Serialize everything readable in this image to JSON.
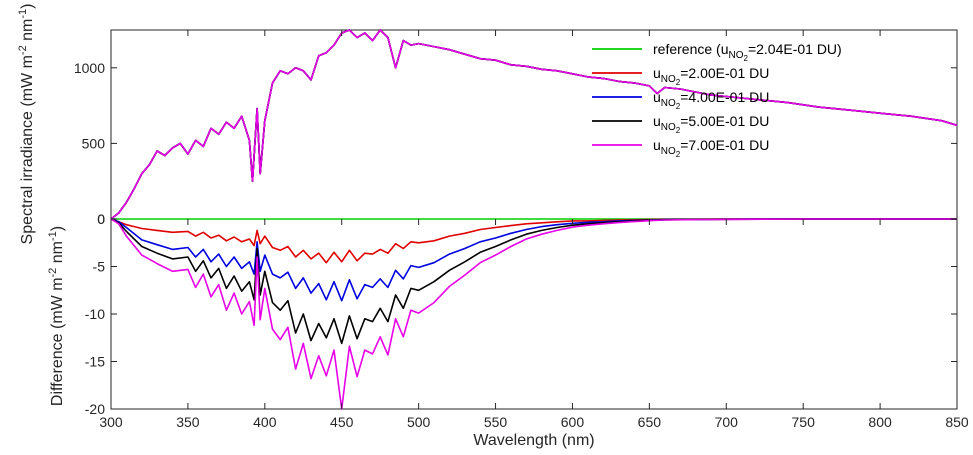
{
  "chart_data": [
    {
      "type": "line",
      "panel": "top",
      "xlabel": "Wavelength (nm)",
      "ylabel": "Spectral irradiance (mW m-2 nm-1)",
      "ylabel_parts": [
        "Spectral irradiance (mW m",
        "-2",
        " nm",
        "-1",
        ")"
      ],
      "xlim": [
        300,
        850
      ],
      "ylim": [
        0,
        1250
      ],
      "yticks": [
        "0",
        "500",
        "1000"
      ],
      "ytick_values": [
        0,
        500,
        1000
      ],
      "x": [
        300,
        305,
        310,
        315,
        320,
        325,
        330,
        335,
        340,
        345,
        350,
        355,
        360,
        365,
        370,
        375,
        380,
        385,
        390,
        392,
        395,
        397,
        400,
        405,
        410,
        415,
        420,
        425,
        430,
        435,
        440,
        445,
        450,
        455,
        460,
        465,
        470,
        475,
        480,
        485,
        490,
        495,
        500,
        510,
        520,
        530,
        540,
        550,
        560,
        570,
        580,
        590,
        600,
        610,
        620,
        630,
        640,
        650,
        655,
        660,
        670,
        680,
        690,
        700,
        720,
        740,
        760,
        780,
        800,
        820,
        840,
        850
      ],
      "series": [
        {
          "name": "reference (uNO2=2.04E-01 DU)",
          "name_parts": [
            "reference (u",
            "NO",
            "2",
            "=2.04E-01 DU)"
          ],
          "color": "#00d000",
          "values": [
            0,
            40,
            110,
            200,
            300,
            360,
            450,
            420,
            470,
            500,
            430,
            520,
            480,
            600,
            560,
            640,
            600,
            680,
            520,
            250,
            730,
            300,
            650,
            900,
            980,
            960,
            1000,
            980,
            920,
            1080,
            1100,
            1150,
            1230,
            1250,
            1200,
            1230,
            1180,
            1250,
            1200,
            1000,
            1180,
            1150,
            1160,
            1140,
            1120,
            1090,
            1060,
            1050,
            1020,
            1010,
            990,
            980,
            960,
            940,
            930,
            910,
            900,
            880,
            830,
            870,
            860,
            840,
            820,
            810,
            790,
            770,
            740,
            720,
            700,
            680,
            650,
            620
          ]
        },
        {
          "name": "uNO2=2.00E-01 DU",
          "name_parts": [
            "u",
            "NO",
            "2",
            "=2.00E-01 DU"
          ],
          "color": "#e00000",
          "values": [
            0,
            40,
            110,
            200,
            300,
            360,
            450,
            420,
            470,
            500,
            430,
            520,
            480,
            600,
            560,
            640,
            600,
            680,
            520,
            250,
            730,
            300,
            650,
            900,
            980,
            960,
            1000,
            980,
            920,
            1080,
            1100,
            1150,
            1230,
            1250,
            1200,
            1230,
            1180,
            1250,
            1200,
            1000,
            1180,
            1150,
            1160,
            1140,
            1120,
            1090,
            1060,
            1050,
            1020,
            1010,
            990,
            980,
            960,
            940,
            930,
            910,
            900,
            880,
            830,
            870,
            860,
            840,
            820,
            810,
            790,
            770,
            740,
            720,
            700,
            680,
            650,
            620
          ]
        },
        {
          "name": "uNO2=4.00E-01 DU",
          "name_parts": [
            "u",
            "NO",
            "2",
            "=4.00E-01 DU"
          ],
          "color": "#0000e0",
          "values": [
            0,
            40,
            110,
            200,
            300,
            360,
            450,
            420,
            470,
            500,
            430,
            520,
            480,
            600,
            560,
            640,
            600,
            680,
            520,
            250,
            730,
            300,
            650,
            900,
            980,
            960,
            1000,
            980,
            920,
            1080,
            1100,
            1150,
            1230,
            1250,
            1200,
            1230,
            1180,
            1250,
            1200,
            1000,
            1180,
            1150,
            1160,
            1140,
            1120,
            1090,
            1060,
            1050,
            1020,
            1010,
            990,
            980,
            960,
            940,
            930,
            910,
            900,
            880,
            830,
            870,
            860,
            840,
            820,
            810,
            790,
            770,
            740,
            720,
            700,
            680,
            650,
            620
          ]
        },
        {
          "name": "uNO2=5.00E-01 DU",
          "name_parts": [
            "u",
            "NO",
            "2",
            "=5.00E-01 DU"
          ],
          "color": "#000000",
          "values": [
            0,
            40,
            110,
            200,
            300,
            360,
            450,
            420,
            470,
            500,
            430,
            520,
            480,
            600,
            560,
            640,
            600,
            680,
            520,
            250,
            730,
            300,
            650,
            900,
            980,
            960,
            1000,
            980,
            920,
            1080,
            1100,
            1150,
            1230,
            1250,
            1200,
            1230,
            1180,
            1250,
            1200,
            1000,
            1180,
            1150,
            1160,
            1140,
            1120,
            1090,
            1060,
            1050,
            1020,
            1010,
            990,
            980,
            960,
            940,
            930,
            910,
            900,
            880,
            830,
            870,
            860,
            840,
            820,
            810,
            790,
            770,
            740,
            720,
            700,
            680,
            650,
            620
          ]
        },
        {
          "name": "uNO2=7.00E-01 DU",
          "name_parts": [
            "u",
            "NO",
            "2",
            "=7.00E-01 DU"
          ],
          "color": "#e800e8",
          "values": [
            0,
            40,
            110,
            200,
            300,
            360,
            450,
            420,
            470,
            500,
            430,
            520,
            480,
            600,
            560,
            640,
            600,
            680,
            520,
            250,
            730,
            300,
            650,
            900,
            980,
            960,
            1000,
            980,
            920,
            1080,
            1100,
            1150,
            1230,
            1250,
            1200,
            1230,
            1180,
            1250,
            1200,
            1000,
            1180,
            1150,
            1160,
            1140,
            1120,
            1090,
            1060,
            1050,
            1020,
            1010,
            990,
            980,
            960,
            940,
            930,
            910,
            900,
            880,
            830,
            870,
            860,
            840,
            820,
            810,
            790,
            770,
            740,
            720,
            700,
            680,
            650,
            620
          ]
        }
      ],
      "legend": "top-right",
      "grid": false
    },
    {
      "type": "line",
      "panel": "bottom",
      "xlabel": "Wavelength (nm)",
      "ylabel": "Difference (mW m-2 nm-1)",
      "ylabel_parts": [
        "Difference (mW m",
        "-2",
        " nm",
        "-1",
        ")"
      ],
      "xlim": [
        300,
        850
      ],
      "ylim": [
        -20,
        0
      ],
      "xticks": [
        "300",
        "350",
        "400",
        "450",
        "500",
        "550",
        "600",
        "650",
        "700",
        "750",
        "800",
        "850"
      ],
      "xtick_values": [
        300,
        350,
        400,
        450,
        500,
        550,
        600,
        650,
        700,
        750,
        800,
        850
      ],
      "yticks": [
        "-20",
        "-15",
        "-10",
        "-5",
        "0"
      ],
      "ytick_values": [
        -20,
        -15,
        -10,
        -5,
        0
      ],
      "x": [
        300,
        305,
        310,
        320,
        330,
        340,
        350,
        355,
        360,
        365,
        370,
        375,
        380,
        385,
        390,
        393,
        395,
        397,
        400,
        405,
        410,
        415,
        420,
        425,
        430,
        435,
        440,
        445,
        450,
        455,
        460,
        465,
        470,
        475,
        480,
        485,
        490,
        495,
        500,
        510,
        520,
        530,
        540,
        550,
        560,
        570,
        580,
        590,
        600,
        610,
        620,
        630,
        640,
        650,
        660,
        680,
        700,
        750,
        800,
        850
      ],
      "series": [
        {
          "name": "reference (uNO2=2.04E-01 DU)",
          "color": "#00d000",
          "values": [
            0,
            0,
            0,
            0,
            0,
            0,
            0,
            0,
            0,
            0,
            0,
            0,
            0,
            0,
            0,
            0,
            0,
            0,
            0,
            0,
            0,
            0,
            0,
            0,
            0,
            0,
            0,
            0,
            0,
            0,
            0,
            0,
            0,
            0,
            0,
            0,
            0,
            0,
            0,
            0,
            0,
            0,
            0,
            0,
            0,
            0,
            0,
            0,
            0,
            0,
            0,
            0,
            0,
            0,
            0,
            0,
            0,
            0,
            0,
            0
          ]
        },
        {
          "name": "uNO2=2.00E-01 DU",
          "color": "#e00000",
          "values": [
            0,
            -0.3,
            -0.6,
            -1.0,
            -1.2,
            -1.4,
            -1.3,
            -1.8,
            -1.4,
            -2.0,
            -1.7,
            -2.3,
            -1.9,
            -2.4,
            -2.1,
            -2.8,
            -1.2,
            -2.6,
            -1.8,
            -3.0,
            -3.3,
            -2.9,
            -4.0,
            -3.3,
            -4.2,
            -3.6,
            -4.6,
            -3.5,
            -4.5,
            -3.3,
            -4.4,
            -3.6,
            -3.7,
            -3.2,
            -3.6,
            -2.6,
            -3.1,
            -2.4,
            -2.5,
            -2.3,
            -1.8,
            -1.5,
            -1.1,
            -0.9,
            -0.7,
            -0.5,
            -0.4,
            -0.3,
            -0.2,
            -0.2,
            -0.15,
            -0.1,
            -0.08,
            -0.05,
            -0.03,
            -0.02,
            -0.01,
            0,
            0,
            0
          ]
        },
        {
          "name": "uNO2=4.00E-01 DU",
          "color": "#0000e0",
          "values": [
            0,
            -0.3,
            -0.9,
            -2.2,
            -2.7,
            -3.2,
            -3.0,
            -4.0,
            -3.2,
            -4.5,
            -3.7,
            -5.0,
            -4.0,
            -5.2,
            -4.5,
            -5.8,
            -2.4,
            -5.5,
            -3.8,
            -5.8,
            -6.2,
            -5.6,
            -7.3,
            -6.2,
            -7.8,
            -6.8,
            -8.5,
            -6.6,
            -8.6,
            -6.4,
            -8.4,
            -6.9,
            -7.2,
            -6.3,
            -7.2,
            -5.4,
            -6.3,
            -4.9,
            -5.1,
            -4.6,
            -3.7,
            -3.1,
            -2.4,
            -2.0,
            -1.5,
            -1.1,
            -0.8,
            -0.6,
            -0.45,
            -0.35,
            -0.3,
            -0.2,
            -0.15,
            -0.1,
            -0.06,
            -0.04,
            -0.02,
            0,
            0,
            0
          ]
        },
        {
          "name": "uNO2=5.00E-01 DU",
          "color": "#000000",
          "values": [
            0,
            -0.4,
            -1.3,
            -2.9,
            -3.6,
            -4.2,
            -4.0,
            -5.5,
            -4.4,
            -6.2,
            -5.2,
            -7.3,
            -6.0,
            -7.6,
            -6.6,
            -8.5,
            -3.1,
            -8.0,
            -5.5,
            -8.8,
            -9.6,
            -8.6,
            -12.0,
            -10.0,
            -12.8,
            -11.0,
            -12.5,
            -10.5,
            -13.1,
            -10.2,
            -12.6,
            -10.5,
            -10.8,
            -9.4,
            -10.8,
            -8.0,
            -9.4,
            -7.3,
            -7.5,
            -6.6,
            -5.4,
            -4.5,
            -3.5,
            -2.9,
            -2.2,
            -1.6,
            -1.2,
            -0.9,
            -0.65,
            -0.5,
            -0.4,
            -0.3,
            -0.2,
            -0.14,
            -0.08,
            -0.05,
            -0.03,
            0,
            0,
            0
          ]
        },
        {
          "name": "uNO2=7.00E-01 DU",
          "color": "#e800e8",
          "values": [
            0,
            -0.5,
            -1.8,
            -3.8,
            -4.7,
            -5.5,
            -5.3,
            -7.2,
            -5.8,
            -8.2,
            -6.9,
            -9.6,
            -7.8,
            -10.0,
            -8.7,
            -11.2,
            -4.0,
            -10.6,
            -7.3,
            -11.6,
            -12.7,
            -11.4,
            -15.8,
            -13.1,
            -16.8,
            -14.4,
            -16.5,
            -13.8,
            -20.0,
            -13.4,
            -16.6,
            -13.8,
            -14.2,
            -12.4,
            -14.3,
            -10.5,
            -12.4,
            -9.6,
            -9.9,
            -8.8,
            -7.1,
            -5.9,
            -4.6,
            -3.8,
            -2.9,
            -2.1,
            -1.6,
            -1.2,
            -0.85,
            -0.65,
            -0.5,
            -0.38,
            -0.27,
            -0.18,
            -0.1,
            -0.06,
            -0.04,
            0,
            0,
            0
          ]
        }
      ],
      "grid": false
    }
  ]
}
